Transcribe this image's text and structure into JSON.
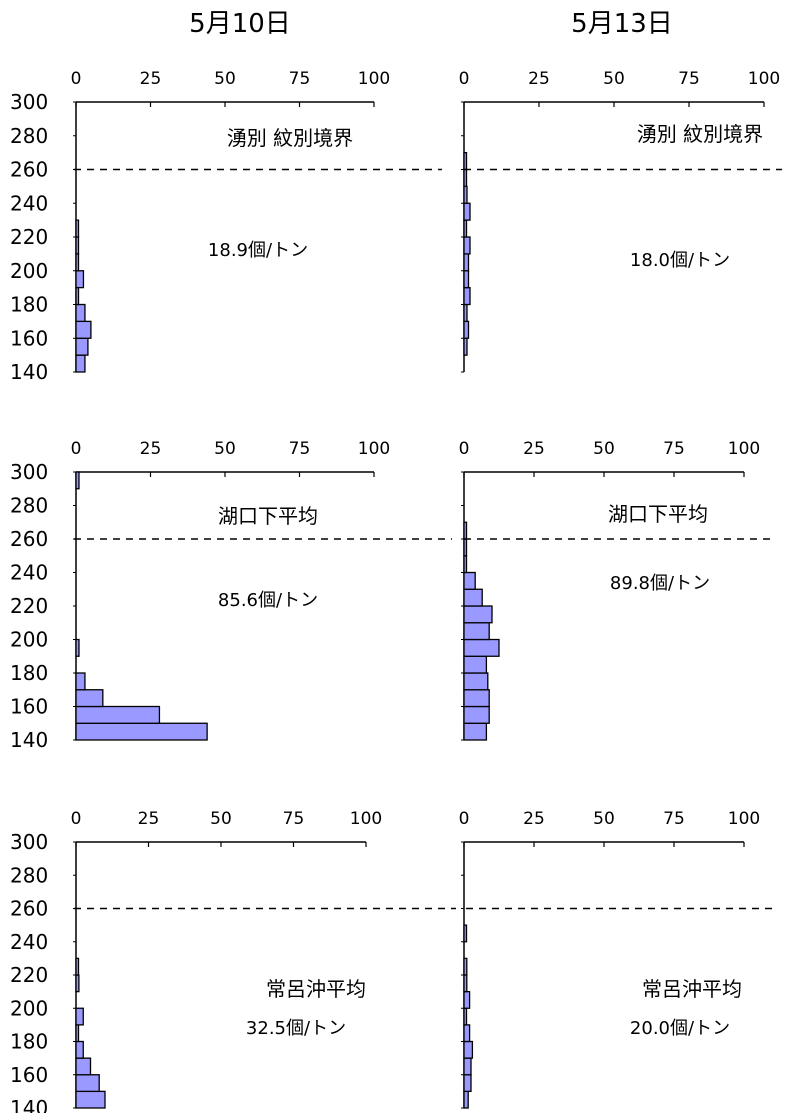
{
  "columns": [
    "5月10日",
    "5月13日"
  ],
  "chart_data": [
    {
      "type": "bar",
      "orientation": "horizontal",
      "date": "5月10日",
      "label": "湧別 紋別境界",
      "density": "18.9個/トン",
      "xlim": [
        0,
        100
      ],
      "xticks": [
        0,
        25,
        50,
        75,
        100
      ],
      "ylim": [
        140,
        300
      ],
      "yticks": [
        300,
        280,
        260,
        240,
        220,
        200,
        180,
        160,
        140
      ],
      "bins": [
        145,
        155,
        165,
        175,
        185,
        195,
        205,
        215,
        225,
        235,
        245,
        255,
        265,
        275,
        285,
        295
      ],
      "values": [
        3,
        4,
        5,
        3,
        0.5,
        2.5,
        0.5,
        0.5,
        0.5,
        0,
        0,
        0,
        0,
        0,
        0,
        0
      ],
      "reference_line": 260
    },
    {
      "type": "bar",
      "orientation": "horizontal",
      "date": "5月13日",
      "label": "湧別 紋別境界",
      "density": "18.0個/トン",
      "xlim": [
        0,
        100
      ],
      "xticks": [
        0,
        25,
        50,
        75,
        100
      ],
      "ylim": [
        140,
        300
      ],
      "yticks": [],
      "bins": [
        145,
        155,
        165,
        175,
        185,
        195,
        205,
        215,
        225,
        235,
        245,
        255,
        265,
        275,
        285,
        295
      ],
      "values": [
        0,
        1,
        1.5,
        1,
        2,
        1.5,
        1.5,
        2,
        0.5,
        2,
        1,
        0.5,
        0.5,
        0,
        0,
        0
      ],
      "reference_line": 260
    },
    {
      "type": "bar",
      "orientation": "horizontal",
      "date": "5月10日",
      "label": "湖口下平均",
      "density": "85.6個/トン",
      "xlim": [
        0,
        100
      ],
      "xticks": [
        0,
        25,
        50,
        75,
        100
      ],
      "ylim": [
        140,
        300
      ],
      "yticks": [
        300,
        280,
        260,
        240,
        220,
        200,
        180,
        160,
        140
      ],
      "bins": [
        145,
        155,
        165,
        175,
        185,
        195,
        205,
        215,
        225,
        235,
        245,
        255,
        265,
        275,
        285,
        295
      ],
      "values": [
        44,
        28,
        9,
        3,
        0,
        1,
        0,
        0,
        0,
        0,
        0,
        0,
        0,
        0,
        0,
        1
      ],
      "reference_line": 260
    },
    {
      "type": "bar",
      "orientation": "horizontal",
      "date": "5月13日",
      "label": "湖口下平均",
      "density": "89.8個/トン",
      "xlim": [
        0,
        100
      ],
      "xticks": [
        0,
        25,
        50,
        75,
        100
      ],
      "ylim": [
        140,
        300
      ],
      "yticks": [],
      "bins": [
        145,
        155,
        165,
        175,
        185,
        195,
        205,
        215,
        225,
        235,
        245,
        255,
        265,
        275,
        285,
        295
      ],
      "values": [
        8,
        9,
        9,
        8.5,
        8,
        12.5,
        9,
        10,
        6.5,
        4,
        0.5,
        0.5,
        0.5,
        0,
        0,
        0
      ],
      "reference_line": 260
    },
    {
      "type": "bar",
      "orientation": "horizontal",
      "date": "5月10日",
      "label": "常呂沖平均",
      "density": "32.5個/トン",
      "xlim": [
        0,
        100
      ],
      "xticks": [
        0,
        25,
        50,
        75,
        100
      ],
      "ylim": [
        140,
        300
      ],
      "yticks": [
        300,
        280,
        260,
        240,
        220,
        200,
        180,
        160,
        140
      ],
      "bins": [
        145,
        155,
        165,
        175,
        185,
        195,
        205,
        215,
        225,
        235,
        245,
        255,
        265,
        275,
        285,
        295
      ],
      "values": [
        10,
        8,
        5,
        2.5,
        0.5,
        2.5,
        0,
        1,
        0.5,
        0,
        0,
        0,
        0,
        0,
        0,
        0
      ],
      "reference_line": 260
    },
    {
      "type": "bar",
      "orientation": "horizontal",
      "date": "5月13日",
      "label": "常呂沖平均",
      "density": "20.0個/トン",
      "xlim": [
        0,
        100
      ],
      "xticks": [
        0,
        25,
        50,
        75,
        100
      ],
      "ylim": [
        140,
        300
      ],
      "yticks": [],
      "bins": [
        145,
        155,
        165,
        175,
        185,
        195,
        205,
        215,
        225,
        235,
        245,
        255,
        265,
        275,
        285,
        295
      ],
      "values": [
        1.5,
        2.5,
        2.5,
        3,
        2,
        0.5,
        2,
        1,
        1,
        0,
        0.5,
        0,
        0,
        0,
        0,
        0
      ],
      "reference_line": 260
    }
  ],
  "colors": {
    "bar_fill": "#9999ff",
    "bar_stroke": "#000000",
    "axis": "#000000",
    "text": "#000000"
  }
}
